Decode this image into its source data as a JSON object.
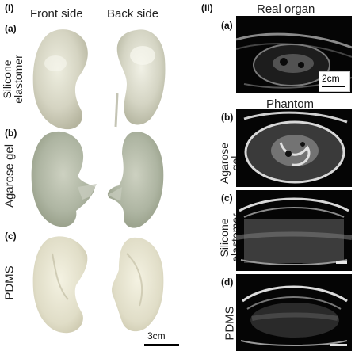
{
  "panel_I": {
    "label": "(I)",
    "col_front": "Front side",
    "col_back": "Back side",
    "rows": [
      {
        "letter": "(a)",
        "name_lines": [
          "Silicone",
          "elastomer"
        ]
      },
      {
        "letter": "(b)",
        "name_lines": [
          "Agarose gel"
        ]
      },
      {
        "letter": "(c)",
        "name_lines": [
          "PDMS"
        ]
      }
    ],
    "scale": "3cm"
  },
  "panel_II": {
    "label": "(II)",
    "title_real": "Real organ",
    "title_phantom": "Phantom",
    "rows": [
      {
        "letter": "(a)",
        "name_lines": []
      },
      {
        "letter": "(b)",
        "name_lines": [
          "Agarose",
          "gel"
        ]
      },
      {
        "letter": "(c)",
        "name_lines": [
          "Silicone",
          "elastomer"
        ]
      },
      {
        "letter": "(d)",
        "name_lines": [
          "PDMS"
        ]
      }
    ],
    "scale": "2cm"
  }
}
